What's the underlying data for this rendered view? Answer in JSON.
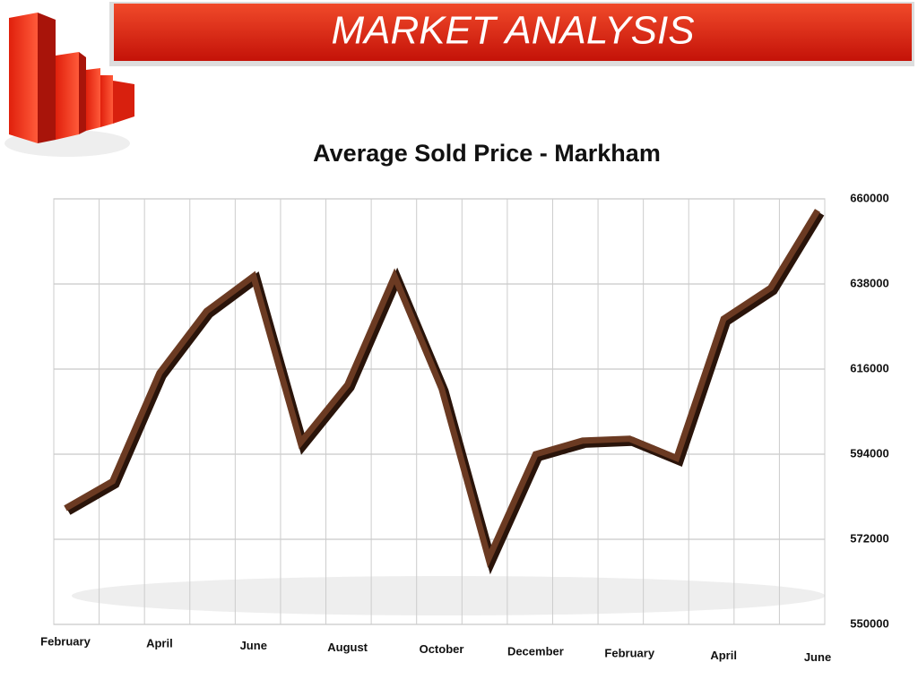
{
  "slide_title": "MARKET ANALYSIS",
  "chart_data": {
    "type": "line",
    "title": "Average Sold Price - Markham",
    "categories": [
      "February",
      null,
      "April",
      null,
      "June",
      null,
      "August",
      null,
      "October",
      null,
      "December",
      null,
      "February",
      null,
      "April",
      null,
      "June"
    ],
    "series": [
      {
        "name": "Average Sold Price",
        "color": "#6b3a22",
        "values": [
          580000,
          587000,
          615000,
          631000,
          640000,
          597000,
          612000,
          640000,
          611000,
          567000,
          594000,
          597500,
          598000,
          593000,
          629000,
          637000,
          657000
        ]
      }
    ],
    "ylim": [
      550000,
      660000
    ],
    "yticks": [
      550000,
      572000,
      594000,
      616000,
      638000,
      660000
    ],
    "grid": true
  }
}
